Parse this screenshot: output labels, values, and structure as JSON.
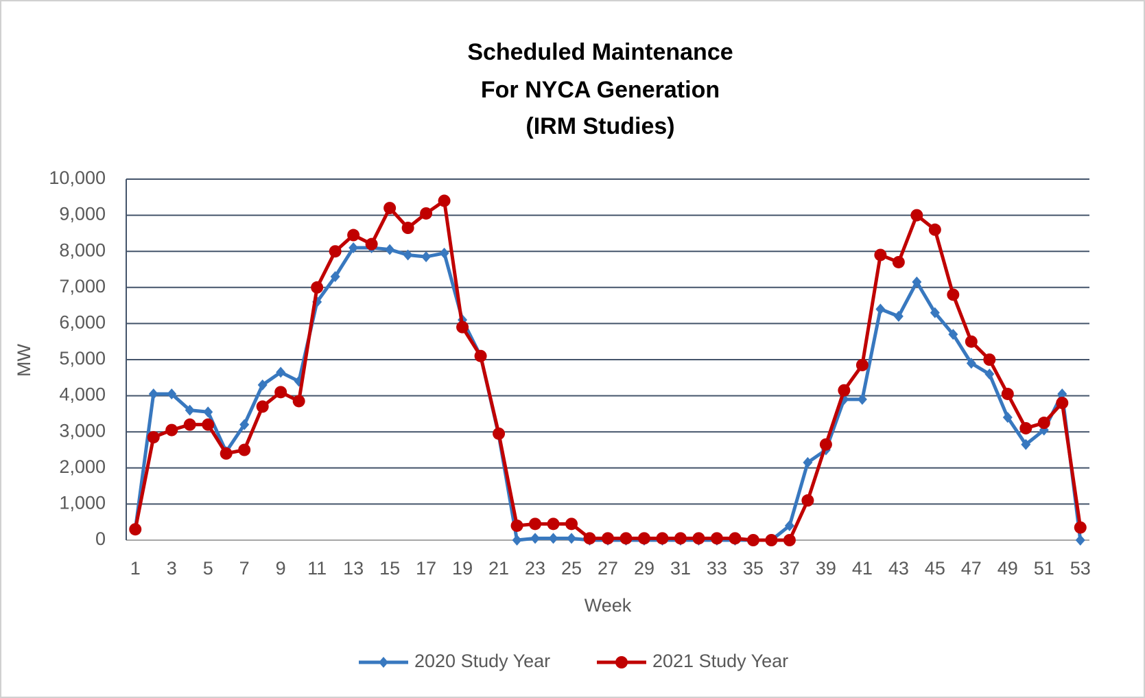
{
  "chart_data": {
    "type": "line",
    "title": [
      "Scheduled Maintenance",
      "For NYCA Generation",
      "(IRM Studies)"
    ],
    "x_label": "Week",
    "y_label": "MW",
    "categories": [
      "1",
      null,
      "3",
      null,
      "5",
      null,
      "7",
      null,
      "9",
      null,
      "11",
      null,
      "13",
      null,
      "15",
      null,
      "17",
      null,
      "19",
      null,
      "21",
      null,
      "23",
      null,
      "25",
      null,
      "27",
      null,
      "29",
      null,
      "31",
      null,
      "33",
      null,
      "35",
      null,
      "37",
      null,
      "39",
      null,
      "41",
      null,
      "43",
      null,
      "45",
      null,
      "47",
      null,
      "49",
      null,
      "51",
      null,
      "53"
    ],
    "series": [
      {
        "name": "2020 Study Year",
        "color": "#3878bf",
        "marker": "diamond",
        "values": [
          300,
          4050,
          4050,
          3600,
          3550,
          2450,
          3200,
          4300,
          4650,
          4400,
          6600,
          7300,
          8100,
          8100,
          8050,
          7900,
          7850,
          7950,
          6100,
          5100,
          2900,
          0,
          50,
          50,
          50,
          0,
          0,
          0,
          0,
          0,
          0,
          0,
          0,
          0,
          0,
          0,
          400,
          2150,
          2500,
          3900,
          3900,
          6400,
          6200,
          7150,
          6300,
          5700,
          4900,
          4600,
          3400,
          2650,
          3050,
          4050,
          0
        ]
      },
      {
        "name": "2021 Study Year",
        "color": "#c00000",
        "marker": "circle",
        "values": [
          300,
          2850,
          3050,
          3200,
          3200,
          2400,
          2500,
          3700,
          4100,
          3850,
          7000,
          8000,
          8450,
          8200,
          9200,
          8650,
          9050,
          9400,
          5900,
          5100,
          2950,
          400,
          450,
          450,
          450,
          50,
          50,
          50,
          50,
          50,
          50,
          50,
          50,
          50,
          0,
          0,
          0,
          1100,
          2650,
          4150,
          4850,
          7900,
          7700,
          9000,
          8600,
          6800,
          5500,
          5000,
          4050,
          3100,
          3250,
          3800,
          350
        ]
      }
    ],
    "ylim": [
      0,
      10000
    ],
    "yticks": [
      0,
      {
        "value": 1000,
        "label": "1,000"
      },
      {
        "value": 2000,
        "label": "2,000"
      },
      {
        "value": 3000,
        "label": "3,000"
      },
      {
        "value": 4000,
        "label": "4,000"
      },
      {
        "value": 5000,
        "label": "5,000"
      },
      {
        "value": 6000,
        "label": "6,000"
      },
      {
        "value": 7000,
        "label": "7,000"
      },
      {
        "value": 8000,
        "label": "8,000"
      },
      {
        "value": 9000,
        "label": "9,000"
      },
      {
        "value": 10000,
        "label": "10,000"
      }
    ],
    "grid": true,
    "legend": "bottom"
  }
}
